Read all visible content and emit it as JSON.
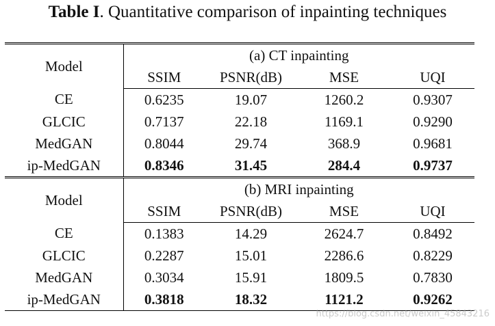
{
  "caption": {
    "label": "Table I",
    "text": ". Quantitative comparison of inpainting techniques"
  },
  "table": {
    "model_header": "Model",
    "metrics": [
      "SSIM",
      "PSNR(dB)",
      "MSE",
      "UQI"
    ],
    "sections": [
      {
        "title": "(a) CT inpainting",
        "rows": [
          {
            "model": "CE",
            "values": [
              "0.6235",
              "19.07",
              "1260.2",
              "0.9307"
            ],
            "best": false
          },
          {
            "model": "GLCIC",
            "values": [
              "0.7137",
              "22.18",
              "1169.1",
              "0.9290"
            ],
            "best": false
          },
          {
            "model": "MedGAN",
            "values": [
              "0.8044",
              "29.74",
              "368.9",
              "0.9681"
            ],
            "best": false
          },
          {
            "model": "ip-MedGAN",
            "values": [
              "0.8346",
              "31.45",
              "284.4",
              "0.9737"
            ],
            "best": true
          }
        ]
      },
      {
        "title": "(b) MRI inpainting",
        "rows": [
          {
            "model": "CE",
            "values": [
              "0.1383",
              "14.29",
              "2624.7",
              "0.8492"
            ],
            "best": false
          },
          {
            "model": "GLCIC",
            "values": [
              "0.2287",
              "15.01",
              "2286.6",
              "0.8229"
            ],
            "best": false
          },
          {
            "model": "MedGAN",
            "values": [
              "0.3034",
              "15.91",
              "1809.5",
              "0.7830"
            ],
            "best": false
          },
          {
            "model": "ip-MedGAN",
            "values": [
              "0.3818",
              "18.32",
              "1121.2",
              "0.9262"
            ],
            "best": true
          }
        ]
      }
    ]
  },
  "watermark": "https://blog.csdn.net/weixin_45843216"
}
